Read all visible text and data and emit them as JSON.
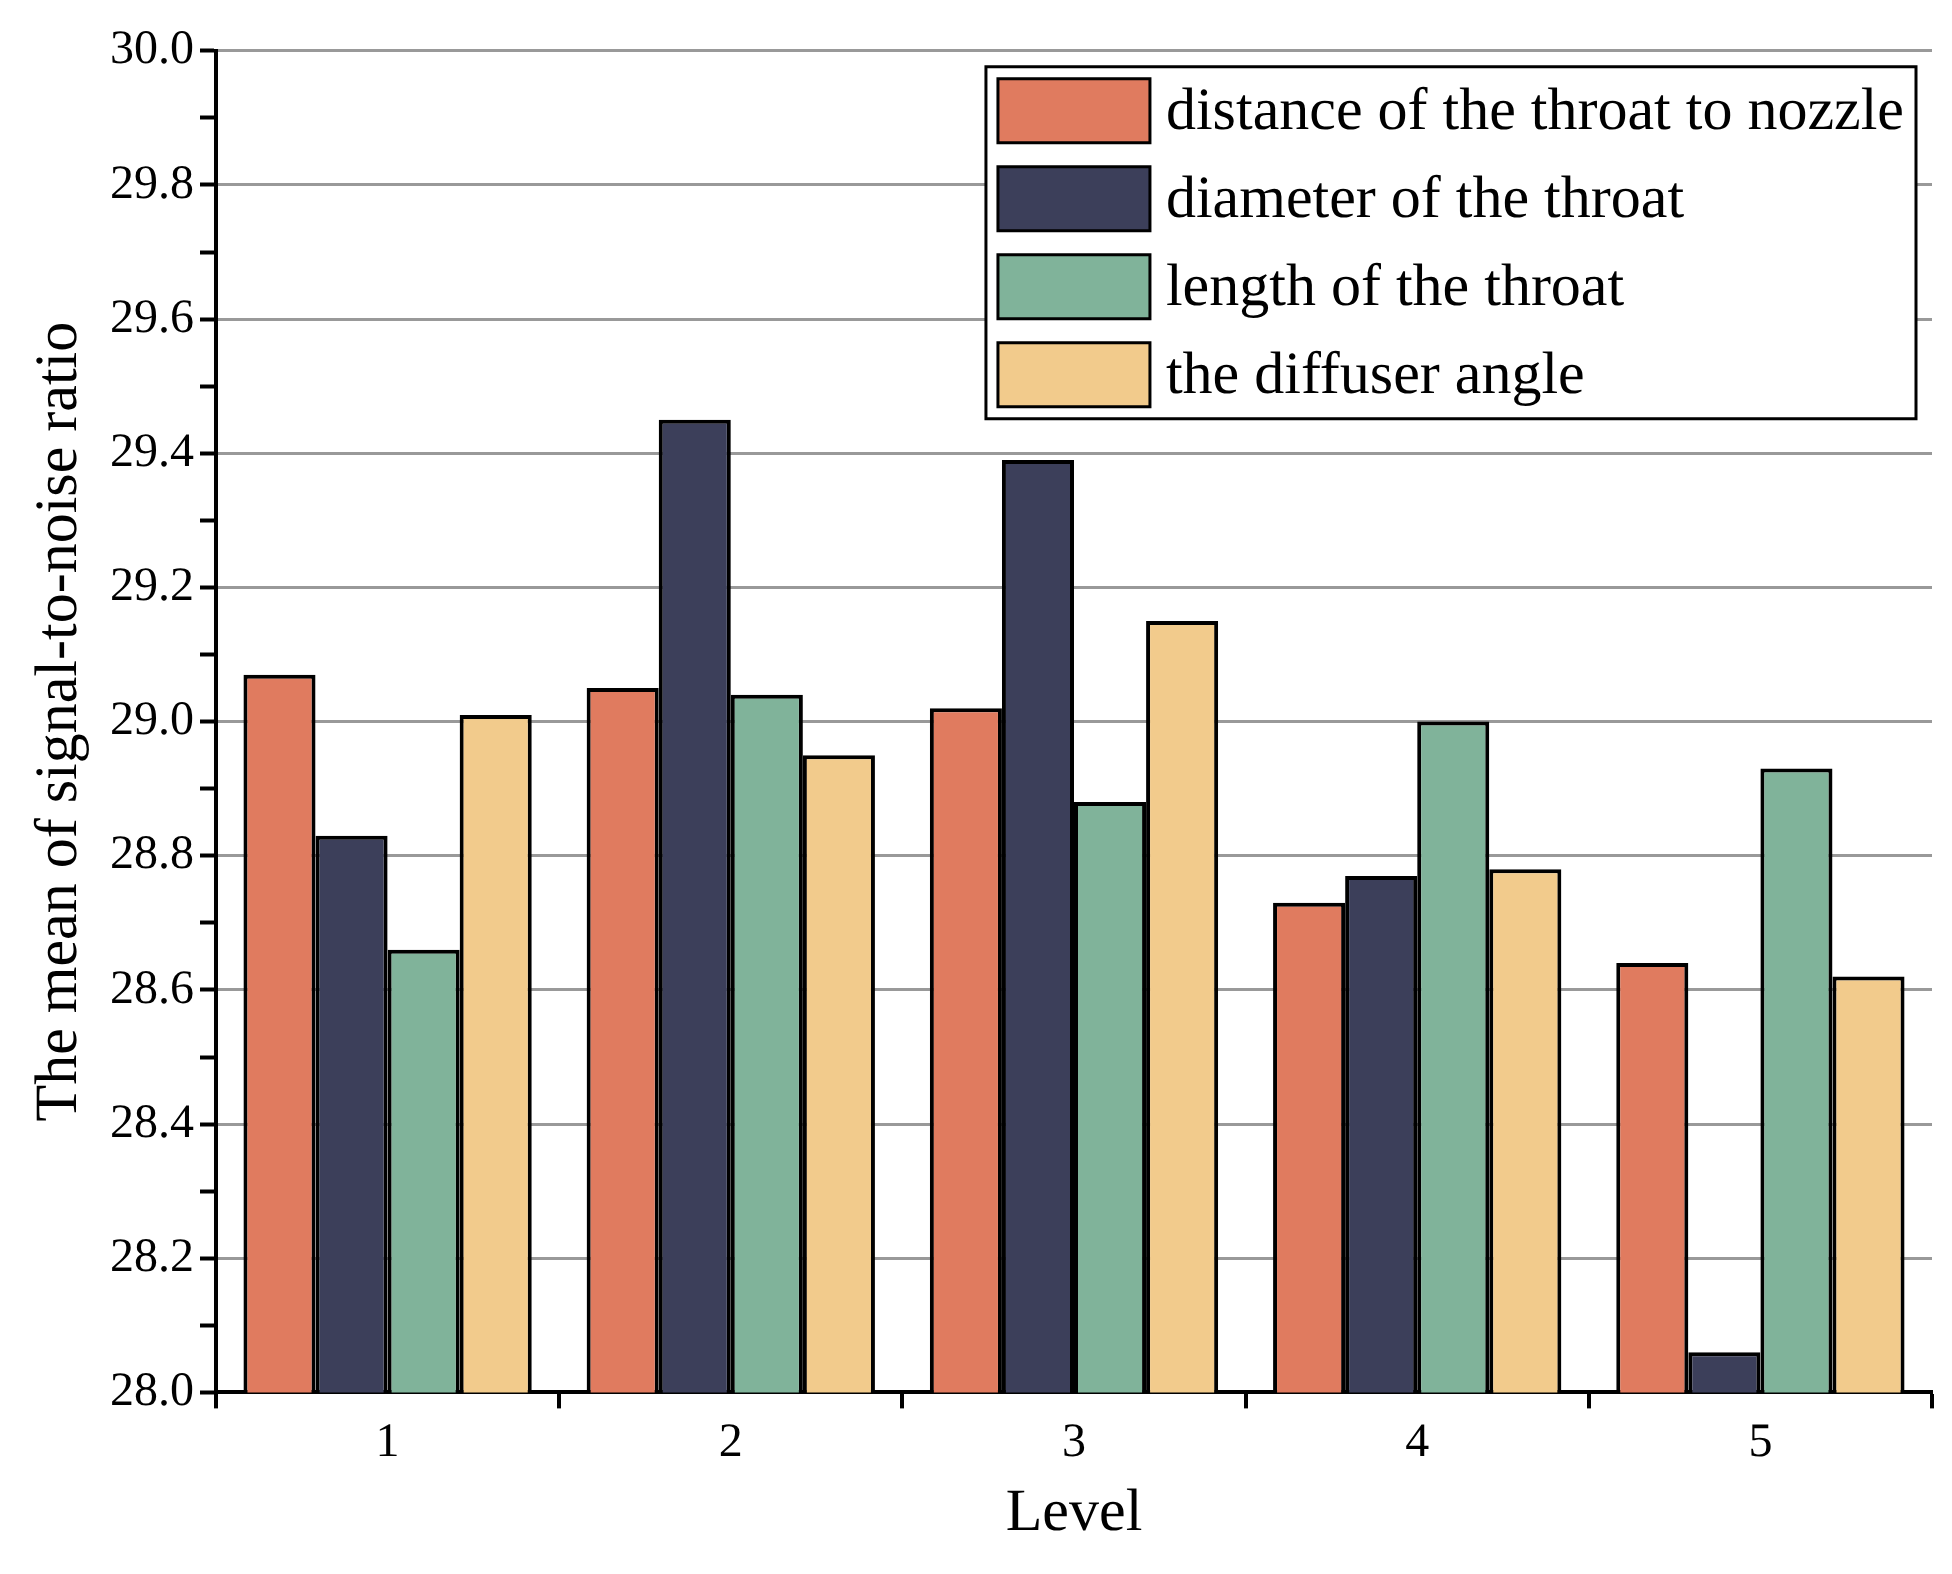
{
  "chart_data": {
    "type": "bar",
    "xlabel": "Level",
    "ylabel": "The mean of signal-to-noise ratio",
    "categories": [
      "1",
      "2",
      "3",
      "4",
      "5"
    ],
    "series": [
      {
        "name": "distance of the throat to nozzle",
        "color": "#e07b5f",
        "values": [
          29.07,
          29.05,
          29.02,
          28.73,
          28.64
        ]
      },
      {
        "name": "diameter of the throat",
        "color": "#3c3f5a",
        "values": [
          28.83,
          29.45,
          29.39,
          28.77,
          28.06
        ]
      },
      {
        "name": "length of the throat",
        "color": "#80b39a",
        "values": [
          28.66,
          29.04,
          28.88,
          29.0,
          28.93
        ]
      },
      {
        "name": "the diffuser angle",
        "color": "#f2cb8c",
        "values": [
          29.01,
          28.95,
          29.15,
          28.78,
          28.62
        ]
      }
    ],
    "ylim": [
      28.0,
      30.0
    ],
    "yticks": [
      {
        "value": 28,
        "label": "28.0"
      },
      {
        "value": 28.1,
        "label": null
      },
      28.2,
      {
        "value": 28.3,
        "label": null
      },
      28.4,
      {
        "value": 28.5,
        "label": null
      },
      28.6,
      {
        "value": 28.7,
        "label": null
      },
      28.8,
      {
        "value": 28.9,
        "label": null
      },
      {
        "value": 29,
        "label": "29.0"
      },
      {
        "value": 29.1,
        "label": null
      },
      29.2,
      {
        "value": 29.3,
        "label": null
      },
      29.4,
      {
        "value": 29.5,
        "label": null
      },
      29.6,
      {
        "value": 29.7,
        "label": null
      },
      29.8,
      {
        "value": 29.9,
        "label": null
      },
      {
        "value": 30,
        "label": "30.0"
      }
    ],
    "grid": "y",
    "legend": "top right"
  }
}
